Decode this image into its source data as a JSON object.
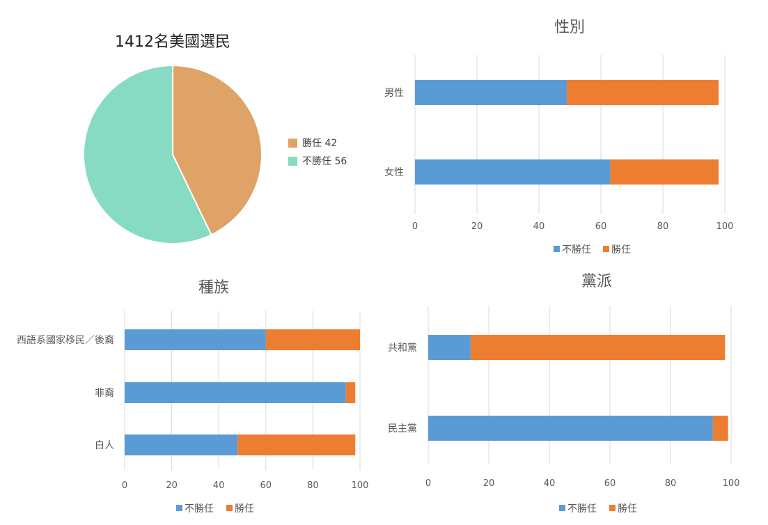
{
  "colors": {
    "not_approve": "#5B9BD5",
    "approve": "#ED7D31",
    "pie_approve": "#DFA367",
    "pie_not_approve": "#86DBC2",
    "grid": "#d9d9d9",
    "axis_text": "#595959",
    "title_text": "#595959",
    "pie_title_text": "#222222"
  },
  "chart_data": [
    {
      "id": "overall",
      "type": "pie",
      "title": "1412名美國選民",
      "slices": [
        {
          "label": "勝任",
          "value": 42,
          "legend": "勝任 42"
        },
        {
          "label": "不勝任",
          "value": 56,
          "legend": "不勝任 56"
        }
      ],
      "legend_position": "right"
    },
    {
      "id": "gender",
      "type": "bar",
      "orientation": "horizontal",
      "stacked": true,
      "title": "性別",
      "categories": [
        "男性",
        "女性"
      ],
      "series": [
        {
          "name": "不勝任",
          "values": [
            49,
            63
          ]
        },
        {
          "name": "勝任",
          "values": [
            49,
            35
          ]
        }
      ],
      "xlim": [
        0,
        100
      ],
      "xticks": [
        "0",
        "20",
        "40",
        "60",
        "80",
        "100"
      ],
      "grid": true,
      "legend_position": "bottom"
    },
    {
      "id": "race",
      "type": "bar",
      "orientation": "horizontal",
      "stacked": true,
      "title": "種族",
      "categories": [
        "西語系國家移民／後裔",
        "非裔",
        "白人"
      ],
      "series": [
        {
          "name": "不勝任",
          "values": [
            60,
            94,
            48
          ]
        },
        {
          "name": "勝任",
          "values": [
            40,
            4,
            50
          ]
        }
      ],
      "xlim": [
        0,
        100
      ],
      "xticks": [
        "0",
        "20",
        "40",
        "60",
        "80",
        "100"
      ],
      "grid": true,
      "legend_position": "bottom"
    },
    {
      "id": "party",
      "type": "bar",
      "orientation": "horizontal",
      "stacked": true,
      "title": "黨派",
      "categories": [
        "共和黨",
        "民主黨"
      ],
      "series": [
        {
          "name": "不勝任",
          "values": [
            14,
            94
          ]
        },
        {
          "name": "勝任",
          "values": [
            84,
            5
          ]
        }
      ],
      "xlim": [
        0,
        100
      ],
      "xticks": [
        "0",
        "20",
        "40",
        "60",
        "80",
        "100"
      ],
      "grid": true,
      "legend_position": "bottom"
    }
  ]
}
